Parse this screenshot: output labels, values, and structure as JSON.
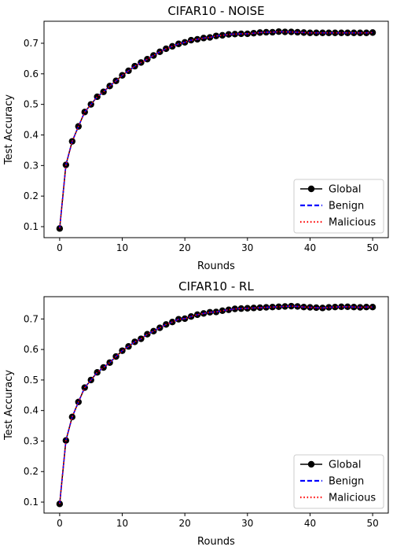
{
  "chart_data": [
    {
      "type": "line",
      "title": "CIFAR10 - NOISE",
      "xlabel": "Rounds",
      "ylabel": "Test Accuracy",
      "xlim": [
        -2.5,
        52.5
      ],
      "ylim": [
        0.064,
        0.772
      ],
      "xticks": [
        0,
        10,
        20,
        30,
        40,
        50
      ],
      "xtick_labels": [
        "0",
        "10",
        "20",
        "30",
        "40",
        "50"
      ],
      "yticks": [
        0.1,
        0.2,
        0.3,
        0.4,
        0.5,
        0.6,
        0.7
      ],
      "ytick_labels": [
        "0.1",
        "0.2",
        "0.3",
        "0.4",
        "0.5",
        "0.6",
        "0.7"
      ],
      "grid": false,
      "legend_position": "lower-right",
      "x": [
        0,
        1,
        2,
        3,
        4,
        5,
        6,
        7,
        8,
        9,
        10,
        11,
        12,
        13,
        14,
        15,
        16,
        17,
        18,
        19,
        20,
        21,
        22,
        23,
        24,
        25,
        26,
        27,
        28,
        29,
        30,
        31,
        32,
        33,
        34,
        35,
        36,
        37,
        38,
        39,
        40,
        41,
        42,
        43,
        44,
        45,
        46,
        47,
        48,
        49,
        50
      ],
      "series": [
        {
          "name": "Global",
          "color": "#000000",
          "style": "solid-marker",
          "values": [
            0.094,
            0.302,
            0.379,
            0.428,
            0.475,
            0.5,
            0.525,
            0.541,
            0.56,
            0.577,
            0.595,
            0.61,
            0.625,
            0.637,
            0.648,
            0.66,
            0.672,
            0.682,
            0.69,
            0.698,
            0.703,
            0.71,
            0.713,
            0.717,
            0.719,
            0.724,
            0.726,
            0.729,
            0.73,
            0.731,
            0.731,
            0.733,
            0.735,
            0.736,
            0.736,
            0.738,
            0.737,
            0.737,
            0.736,
            0.735,
            0.734,
            0.734,
            0.734,
            0.734,
            0.734,
            0.734,
            0.734,
            0.734,
            0.734,
            0.734,
            0.735
          ]
        },
        {
          "name": "Benign",
          "color": "#0000ff",
          "style": "dashed",
          "values": [
            0.094,
            0.302,
            0.379,
            0.428,
            0.475,
            0.5,
            0.525,
            0.541,
            0.56,
            0.577,
            0.595,
            0.61,
            0.625,
            0.637,
            0.648,
            0.66,
            0.672,
            0.682,
            0.69,
            0.698,
            0.703,
            0.71,
            0.713,
            0.717,
            0.719,
            0.724,
            0.726,
            0.729,
            0.73,
            0.731,
            0.731,
            0.733,
            0.735,
            0.736,
            0.736,
            0.738,
            0.737,
            0.737,
            0.736,
            0.735,
            0.734,
            0.734,
            0.734,
            0.734,
            0.734,
            0.734,
            0.734,
            0.734,
            0.734,
            0.734,
            0.735
          ]
        },
        {
          "name": "Malicious",
          "color": "#ff0000",
          "style": "dotted",
          "values": [
            0.094,
            0.302,
            0.379,
            0.428,
            0.475,
            0.5,
            0.525,
            0.541,
            0.56,
            0.577,
            0.595,
            0.61,
            0.625,
            0.637,
            0.648,
            0.66,
            0.672,
            0.682,
            0.69,
            0.698,
            0.703,
            0.71,
            0.713,
            0.717,
            0.719,
            0.724,
            0.726,
            0.729,
            0.73,
            0.731,
            0.731,
            0.733,
            0.735,
            0.736,
            0.736,
            0.738,
            0.737,
            0.737,
            0.736,
            0.735,
            0.734,
            0.734,
            0.734,
            0.734,
            0.734,
            0.734,
            0.734,
            0.734,
            0.734,
            0.734,
            0.735
          ]
        }
      ]
    },
    {
      "type": "line",
      "title": "CIFAR10 - RL",
      "xlabel": "Rounds",
      "ylabel": "Test Accuracy",
      "xlim": [
        -2.5,
        52.5
      ],
      "ylim": [
        0.064,
        0.773
      ],
      "xticks": [
        0,
        10,
        20,
        30,
        40,
        50
      ],
      "xtick_labels": [
        "0",
        "10",
        "20",
        "30",
        "40",
        "50"
      ],
      "yticks": [
        0.1,
        0.2,
        0.3,
        0.4,
        0.5,
        0.6,
        0.7
      ],
      "ytick_labels": [
        "0.1",
        "0.2",
        "0.3",
        "0.4",
        "0.5",
        "0.6",
        "0.7"
      ],
      "grid": false,
      "legend_position": "lower-right",
      "x": [
        0,
        1,
        2,
        3,
        4,
        5,
        6,
        7,
        8,
        9,
        10,
        11,
        12,
        13,
        14,
        15,
        16,
        17,
        18,
        19,
        20,
        21,
        22,
        23,
        24,
        25,
        26,
        27,
        28,
        29,
        30,
        31,
        32,
        33,
        34,
        35,
        36,
        37,
        38,
        39,
        40,
        41,
        42,
        43,
        44,
        45,
        46,
        47,
        48,
        49,
        50
      ],
      "series": [
        {
          "name": "Global",
          "color": "#000000",
          "style": "solid-marker",
          "values": [
            0.094,
            0.302,
            0.379,
            0.428,
            0.475,
            0.5,
            0.525,
            0.541,
            0.557,
            0.577,
            0.596,
            0.61,
            0.625,
            0.635,
            0.65,
            0.66,
            0.671,
            0.682,
            0.69,
            0.699,
            0.701,
            0.708,
            0.714,
            0.718,
            0.722,
            0.723,
            0.727,
            0.73,
            0.733,
            0.734,
            0.735,
            0.736,
            0.737,
            0.738,
            0.739,
            0.74,
            0.741,
            0.742,
            0.741,
            0.739,
            0.738,
            0.737,
            0.736,
            0.738,
            0.739,
            0.74,
            0.74,
            0.739,
            0.738,
            0.739,
            0.739
          ]
        },
        {
          "name": "Benign",
          "color": "#0000ff",
          "style": "dashed",
          "values": [
            0.094,
            0.302,
            0.379,
            0.428,
            0.475,
            0.5,
            0.525,
            0.541,
            0.557,
            0.577,
            0.596,
            0.61,
            0.625,
            0.635,
            0.65,
            0.66,
            0.671,
            0.682,
            0.69,
            0.699,
            0.701,
            0.708,
            0.714,
            0.718,
            0.722,
            0.723,
            0.727,
            0.73,
            0.733,
            0.734,
            0.735,
            0.736,
            0.737,
            0.738,
            0.739,
            0.74,
            0.741,
            0.742,
            0.741,
            0.739,
            0.738,
            0.737,
            0.736,
            0.738,
            0.739,
            0.74,
            0.74,
            0.739,
            0.738,
            0.739,
            0.739
          ]
        },
        {
          "name": "Malicious",
          "color": "#ff0000",
          "style": "dotted",
          "values": [
            0.094,
            0.302,
            0.379,
            0.428,
            0.475,
            0.5,
            0.525,
            0.541,
            0.557,
            0.577,
            0.596,
            0.61,
            0.625,
            0.635,
            0.65,
            0.66,
            0.671,
            0.682,
            0.69,
            0.699,
            0.701,
            0.708,
            0.714,
            0.718,
            0.722,
            0.723,
            0.727,
            0.73,
            0.733,
            0.734,
            0.735,
            0.736,
            0.737,
            0.738,
            0.739,
            0.74,
            0.741,
            0.742,
            0.741,
            0.739,
            0.738,
            0.737,
            0.736,
            0.738,
            0.739,
            0.74,
            0.74,
            0.739,
            0.738,
            0.739,
            0.739
          ]
        }
      ]
    }
  ]
}
